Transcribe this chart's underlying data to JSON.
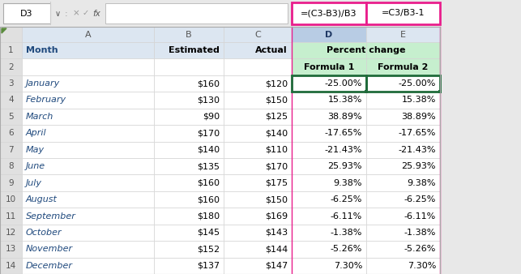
{
  "formula_bar_cell": "D3",
  "formula1_text": "=(C3-B3)/B3",
  "formula2_text": "=C3/B3-1",
  "months": [
    "January",
    "February",
    "March",
    "April",
    "May",
    "June",
    "July",
    "August",
    "September",
    "October",
    "November",
    "December"
  ],
  "estimated": [
    "$160",
    "$130",
    "$90",
    "$170",
    "$140",
    "$135",
    "$160",
    "$160",
    "$180",
    "$145",
    "$152",
    "$137"
  ],
  "actual": [
    "$120",
    "$150",
    "$125",
    "$140",
    "$110",
    "$170",
    "$175",
    "$150",
    "$169",
    "$143",
    "$144",
    "$147"
  ],
  "formula1": [
    "-25.00%",
    "15.38%",
    "38.89%",
    "-17.65%",
    "-21.43%",
    "25.93%",
    "9.38%",
    "-6.25%",
    "-6.11%",
    "-1.38%",
    "-5.26%",
    "7.30%"
  ],
  "formula2": [
    "-25.00%",
    "15.38%",
    "38.89%",
    "-17.65%",
    "-21.43%",
    "25.93%",
    "9.38%",
    "-6.25%",
    "-6.11%",
    "-1.38%",
    "-5.26%",
    "7.30%"
  ],
  "bg_gray": "#e8e8e8",
  "white": "#ffffff",
  "col_header_blue": "#dce6f1",
  "col_header_blue_selected": "#b8cce4",
  "row_header_gray": "#e0e0e0",
  "green_header_bg": "#c6efce",
  "pink": "#e91e8c",
  "dark_green": "#1f6b3a",
  "month_blue": "#1f6b8c",
  "grid_line": "#d4d4d4",
  "formula_bar_border": "#aaaaaa",
  "row1_bg_abc": "#dce6f1"
}
